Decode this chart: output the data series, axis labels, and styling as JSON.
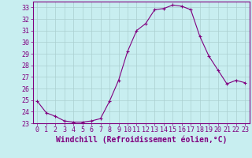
{
  "x": [
    0,
    1,
    2,
    3,
    4,
    5,
    6,
    7,
    8,
    9,
    10,
    11,
    12,
    13,
    14,
    15,
    16,
    17,
    18,
    19,
    20,
    21,
    22,
    23
  ],
  "y": [
    24.9,
    23.9,
    23.6,
    23.2,
    23.1,
    23.1,
    23.2,
    23.4,
    24.9,
    26.7,
    29.2,
    31.0,
    31.6,
    32.8,
    32.9,
    33.2,
    33.1,
    32.8,
    30.5,
    28.8,
    27.6,
    26.4,
    26.7,
    26.5
  ],
  "line_color": "#800080",
  "marker": "+",
  "marker_color": "#800080",
  "bg_color": "#c8eef0",
  "grid_color": "#aacfcf",
  "axis_color": "#800080",
  "xlabel": "Windchill (Refroidissement éolien,°C)",
  "ylim": [
    23,
    33.5
  ],
  "xlim": [
    -0.5,
    23.5
  ],
  "yticks": [
    23,
    24,
    25,
    26,
    27,
    28,
    29,
    30,
    31,
    32,
    33
  ],
  "xticks": [
    0,
    1,
    2,
    3,
    4,
    5,
    6,
    7,
    8,
    9,
    10,
    11,
    12,
    13,
    14,
    15,
    16,
    17,
    18,
    19,
    20,
    21,
    22,
    23
  ],
  "font_color": "#800080",
  "font_family": "monospace",
  "font_size": 6.0,
  "xlabel_fontsize": 7.0,
  "linewidth": 0.8,
  "markersize": 3.5
}
